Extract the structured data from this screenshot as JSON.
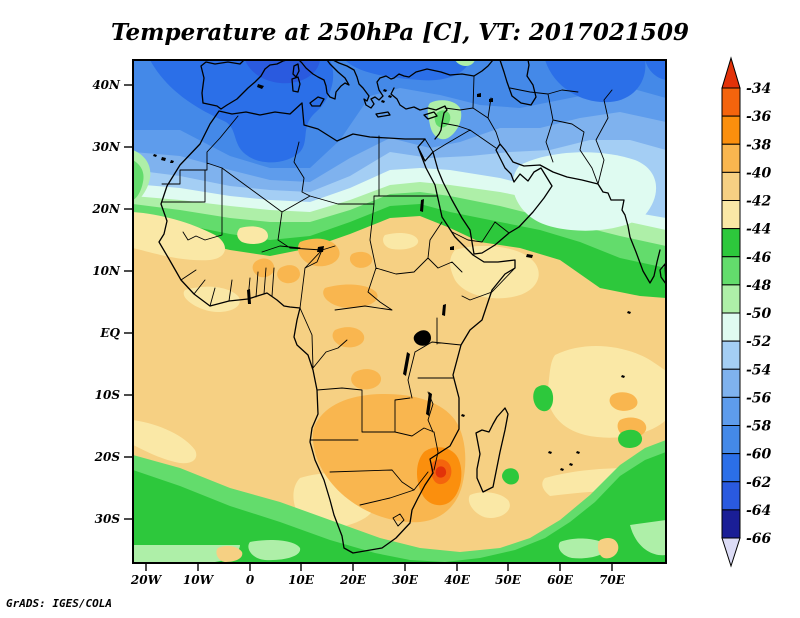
{
  "title": "Temperature at 250hPa [C], VT: 2017021509",
  "credit": "GrADS: IGES/COLA",
  "axes": {
    "lat": [
      "40N",
      "30N",
      "20N",
      "10N",
      "EQ",
      "10S",
      "20S",
      "30S"
    ],
    "lon": [
      "20W",
      "10W",
      "0",
      "10E",
      "20E",
      "30E",
      "40E",
      "50E",
      "60E",
      "70E"
    ]
  },
  "colorbar": {
    "labels": [
      "-34",
      "-36",
      "-38",
      "-40",
      "-42",
      "-44",
      "-46",
      "-48",
      "-50",
      "-52",
      "-54",
      "-56",
      "-58",
      "-60",
      "-62",
      "-64",
      "-66"
    ],
    "box_colors": [
      "#F4640D",
      "#FB8F0D",
      "#F9B64F",
      "#F6D083",
      "#FAE8A6",
      "#2DC83C",
      "#63DC6C",
      "#AEEFA8",
      "#DFFBF1",
      "#A4CEF4",
      "#7FB2EE",
      "#5E9CEC",
      "#4489E8",
      "#2B6FE8",
      "#2A5ADF",
      "#1A1E96"
    ],
    "arrow_top_color": "#E23209",
    "arrow_bottom_color": "#DCDCF6"
  },
  "chart_data": {
    "type": "heatmap",
    "title": "Temperature at 250hPa [C], VT: 2017021509",
    "variable": "Temperature",
    "level": "250hPa",
    "units": "C",
    "valid_time": "2017021509",
    "source_label": "GrADS: IGES/COLA",
    "lon_range": [
      -22.5,
      80.5
    ],
    "lat_range": [
      -37,
      44
    ],
    "lon_ticks": [
      -20,
      -10,
      0,
      10,
      20,
      30,
      40,
      50,
      60,
      70
    ],
    "lat_ticks": [
      40,
      30,
      20,
      10,
      0,
      -10,
      -20,
      -30
    ],
    "contour_levels": [
      -66,
      -64,
      -62,
      -60,
      -58,
      -56,
      -54,
      -52,
      -50,
      -48,
      -46,
      -44,
      -42,
      -40,
      -38,
      -36,
      -34
    ],
    "legend_position": "right",
    "grid": false,
    "features": [
      {
        "region": "Iberia / western Mediterranean ~40N",
        "value_c": -61,
        "shade": "dark blue"
      },
      {
        "region": "Europe, Mediterranean, Middle East 30-44N",
        "value_c": -56,
        "shade": "blues to pale cyan"
      },
      {
        "region": "transition band ~20-27N across Sahara to Arabia/India",
        "value_c": -46,
        "shade": "green"
      },
      {
        "region": "central Africa 20N-20S",
        "value_c": -41,
        "shade": "tan with -39 orange patches over Sahel, Congo"
      },
      {
        "region": "warm maximum near Mozambique coast ~23S 36E",
        "value_c": -34,
        "shade": "red core in dark-orange blob"
      },
      {
        "region": "southern oceans 25-37S",
        "value_c": -46,
        "shade": "green band"
      },
      {
        "region": "Indian Ocean spots ~14S 57E and ~16S 73E",
        "value_c": -45,
        "shade": "green and orange spots"
      }
    ]
  }
}
